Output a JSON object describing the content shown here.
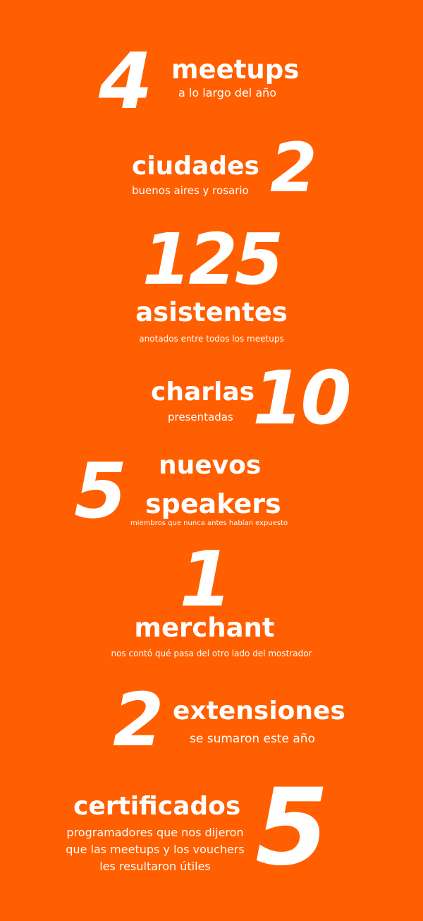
{
  "background_color": "#ff5f00",
  "text_color": "#ffffff",
  "stats": [
    {
      "number": "4",
      "label": "meetups",
      "description": "a lo largo del año"
    },
    {
      "number": "2",
      "label": "ciudades",
      "description": "buenos aires y rosario"
    },
    {
      "number": "125",
      "label": "asistentes",
      "description": "anotados entre todos los meetups"
    },
    {
      "number": "10",
      "label": "charlas",
      "description": "presentadas"
    },
    {
      "number": "5",
      "label_line1": "nuevos",
      "label_line2": "speakers",
      "description": "miembros que nunca antes habían expuesto"
    },
    {
      "number": "1",
      "label": "merchant",
      "description": "nos contó qué pasa del otro lado del mostrador"
    },
    {
      "number": "2",
      "label": "extensiones",
      "description": "se sumaron este año"
    },
    {
      "number": "5",
      "label": "certificados",
      "description_line1": "programadores que nos dijeron",
      "description_line2": "que las meetups y los vouchers",
      "description_line3": "les resultaron útiles"
    }
  ]
}
